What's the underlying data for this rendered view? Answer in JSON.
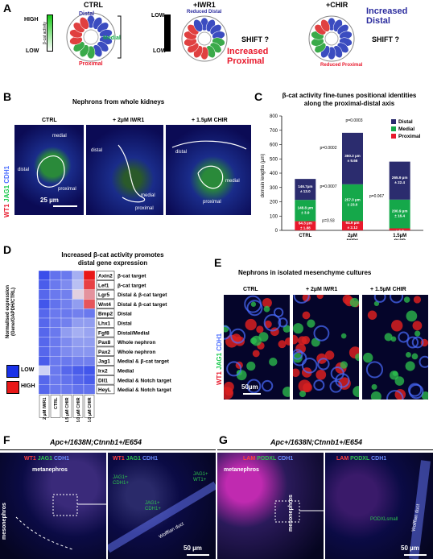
{
  "panels": {
    "a": {
      "letter": "A",
      "conditions": [
        "CTRL",
        "+IWR1",
        "+CHIR"
      ],
      "high": "HIGH",
      "low": "LOW",
      "axis": "β-cat activity",
      "distal": "Distal",
      "medial": "Medial",
      "proximal": "Proximal",
      "reduced_distal": "Reduced Distal",
      "reduced_proximal": "Reduced Proximal",
      "shift": "SHIFT ?",
      "increased_proximal": "Increased\nProximal",
      "increased_distal": "Increased\nDistal"
    },
    "b": {
      "letter": "B",
      "title": "Nephrons from whole kidneys",
      "conditions": [
        "CTRL",
        "+ 2µM IWR1",
        "+ 1.5µM CHIR"
      ],
      "stain_wt1": "WT1",
      "stain_jag1": "JAG1",
      "stain_cdh1": "CDH1",
      "distal": "distal",
      "medial": "medial",
      "proximal": "proximal",
      "scale": "25 µm"
    },
    "c": {
      "letter": "C",
      "title": "β-cat activity fine-tunes positional identities\nalong the proximal-distal axis"
    },
    "d": {
      "letter": "D",
      "title": "Increased β-cat activity promotes\ndistal gene expression",
      "ylabel": "Normalised expression\n(Gene/GAPDH/CTRL)",
      "low": "LOW",
      "high": "HIGH"
    },
    "e": {
      "letter": "E",
      "title": "Nephrons in isolated mesenchyme cultures",
      "conditions": [
        "CTRL",
        "+ 2µM IWR1",
        "+ 1.5µM CHIR"
      ],
      "stain_wt1": "WT1",
      "stain_jag1": "JAG1",
      "stain_cdh1": "CDH1",
      "scale": "50µm"
    },
    "f": {
      "letter": "F",
      "genotype": "Apc+/1638N;Ctnnb1+/E654",
      "stains": [
        "WT1",
        "JAG1",
        "CDH1"
      ],
      "metanephros": "metanephros",
      "mesonephros": "mesonephros",
      "jag1_cdh1_a": "JAG1+\nCDH1+",
      "jag1_cdh1_b": "JAG1+\nCDH1+",
      "jag1_wt1": "JAG1+\nWT1+",
      "wolffian": "Wolffian duct",
      "scale": "50 µm"
    },
    "g": {
      "letter": "G",
      "genotype": "Apc+/1638N;Ctnnb1+/E654",
      "stains": [
        "LAM",
        "PODXL",
        "CDH1"
      ],
      "metanephros": "metanephros",
      "mesonephros": "mesonephros",
      "podxl_small": "PODXLsmall",
      "wolffian": "Wolffian duct",
      "scale": "50 µm"
    }
  },
  "chart_data": [
    {
      "type": "bar",
      "stacked": true,
      "title": "β-cat activity fine-tunes positional identities along the proximal-distal axis",
      "ylabel": "domain lengths (µm)",
      "ylim": [
        0,
        800
      ],
      "yticks": [
        0,
        100,
        200,
        300,
        400,
        500,
        600,
        700,
        800
      ],
      "categories": [
        "CTRL",
        "2µM IWR1",
        "1.5µM CHIR"
      ],
      "series": [
        {
          "name": "Proximal",
          "color": "#e8192c",
          "values": [
            64.3,
            64.9,
            14.1
          ],
          "labels": [
            "64.3 µm\n± 1.88",
            "64.9 µm\n± 2.12",
            "14.1 µm\n± 6.8"
          ]
        },
        {
          "name": "Medial",
          "color": "#15a84a",
          "values": [
            148.8,
            257.3,
            200.9
          ],
          "labels": [
            "148.8 µm\n± 3.9",
            "257.3 µm\n± 23.0",
            "200.9 µm\n± 16.4"
          ]
        },
        {
          "name": "Distal",
          "color": "#2b2c6e",
          "values": [
            146.7,
            360.3,
            265.9
          ],
          "labels": [
            "146.7µm\n± 13.0",
            "360.3 µm\n± 9.66",
            "265.9 µm\n± 22.4"
          ]
        }
      ],
      "pvalues": [
        "p=0.0003",
        "p=0.0002",
        "p=0.0007",
        "p=0.93",
        "p=0.067",
        "p=1.5x10-4"
      ],
      "legend": "top-right"
    },
    {
      "type": "heatmap",
      "title": "Increased β-cat activity promotes distal gene expression",
      "columns": [
        "2 µM IWR1",
        "CTRL",
        "1.5 µM CHIR",
        "3.0 µM CHIR",
        "6.0 µM CHIR"
      ],
      "rows": [
        {
          "gene": "Axin2",
          "category": "β-cat target",
          "values": [
            0.08,
            0.18,
            0.2,
            0.35,
            1.0
          ]
        },
        {
          "gene": "Lef1",
          "category": "β-cat target",
          "values": [
            0.12,
            0.2,
            0.25,
            0.4,
            0.9
          ]
        },
        {
          "gene": "Lgr5",
          "category": "Distal & β-cat target",
          "values": [
            0.15,
            0.2,
            0.22,
            0.55,
            0.7
          ]
        },
        {
          "gene": "Wnt4",
          "category": "Distal & β-cat target",
          "values": [
            0.1,
            0.18,
            0.22,
            0.3,
            0.85
          ]
        },
        {
          "gene": "Bmp2",
          "category": "Distal",
          "values": [
            0.15,
            0.2,
            0.2,
            0.22,
            0.2
          ]
        },
        {
          "gene": "Lhx1",
          "category": "Distal",
          "values": [
            0.15,
            0.2,
            0.22,
            0.3,
            0.3
          ]
        },
        {
          "gene": "Fgf8",
          "category": "Distal/Medial",
          "values": [
            0.15,
            0.2,
            0.3,
            0.35,
            0.32
          ]
        },
        {
          "gene": "Pax8",
          "category": "Whole nephron",
          "values": [
            0.15,
            0.2,
            0.25,
            0.3,
            0.3
          ]
        },
        {
          "gene": "Pax2",
          "category": "Whole nephron",
          "values": [
            0.15,
            0.2,
            0.25,
            0.28,
            0.28
          ]
        },
        {
          "gene": "Jag1",
          "category": "Medial & β-cat target",
          "values": [
            0.12,
            0.2,
            0.2,
            0.22,
            0.22
          ]
        },
        {
          "gene": "Irx2",
          "category": "Medial",
          "values": [
            0.45,
            0.2,
            0.15,
            0.12,
            0.1
          ]
        },
        {
          "gene": "Dll1",
          "category": "Medial & Notch target",
          "values": [
            0.15,
            0.2,
            0.18,
            0.15,
            0.12
          ]
        },
        {
          "gene": "HeyL",
          "category": "Medial & Notch target",
          "values": [
            0.15,
            0.2,
            0.2,
            0.18,
            0.18
          ]
        }
      ],
      "colors": {
        "low": "#1a32e8",
        "mid": "#c8ccf2",
        "high": "#e81818"
      }
    }
  ]
}
